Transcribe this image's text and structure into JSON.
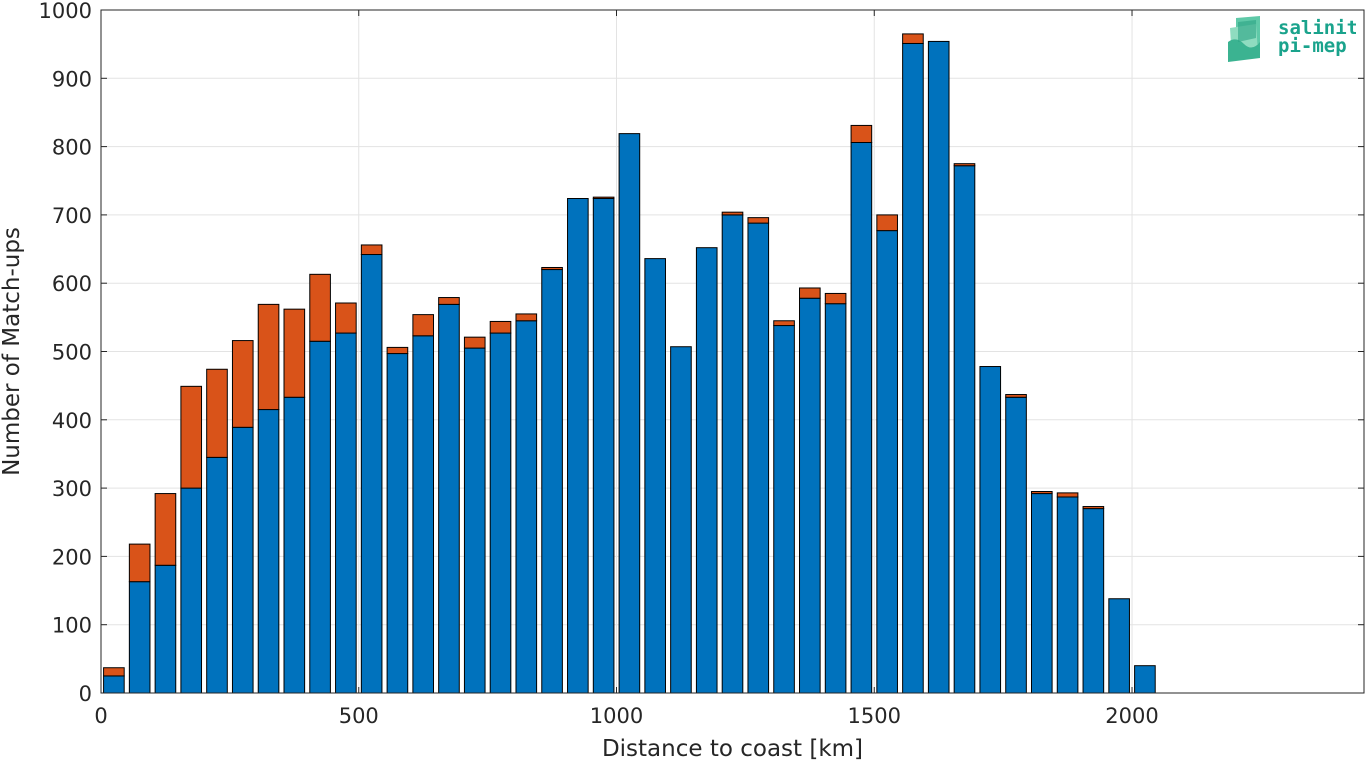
{
  "chart_data": {
    "type": "bar",
    "stacked": true,
    "title": "",
    "xlabel": "Distance to coast [km]",
    "ylabel": "Number of Match-ups",
    "xlim": [
      0,
      2450
    ],
    "ylim": [
      0,
      1000
    ],
    "xticks": [
      0,
      500,
      1000,
      1500,
      2000
    ],
    "yticks": [
      0,
      100,
      200,
      300,
      400,
      500,
      600,
      700,
      800,
      900,
      1000
    ],
    "grid": true,
    "bar_width": 40,
    "x": [
      25,
      75,
      125,
      175,
      225,
      275,
      325,
      375,
      425,
      475,
      525,
      575,
      625,
      675,
      725,
      775,
      825,
      875,
      925,
      975,
      1025,
      1075,
      1125,
      1175,
      1225,
      1275,
      1325,
      1375,
      1425,
      1475,
      1525,
      1575,
      1625,
      1675,
      1725,
      1775,
      1825,
      1875,
      1925,
      1975,
      2025,
      2075,
      2125,
      2175,
      2225,
      2275,
      2325,
      2375,
      2425
    ],
    "series": [
      {
        "color": "#0072BD",
        "values": [
          25,
          163,
          187,
          300,
          345,
          389,
          415,
          433,
          515,
          527,
          642,
          497,
          523,
          569,
          505,
          527,
          545,
          620,
          724,
          724,
          819,
          636,
          507,
          652,
          700,
          688,
          538,
          578,
          570,
          806,
          677,
          951,
          954,
          772,
          478,
          433,
          292,
          287,
          270,
          138,
          40,
          0,
          0,
          0,
          0,
          0,
          0,
          0,
          0
        ]
      },
      {
        "color": "#D95319",
        "values": [
          12,
          55,
          105,
          149,
          129,
          127,
          154,
          129,
          98,
          44,
          14,
          9,
          31,
          10,
          16,
          17,
          10,
          3,
          0,
          2,
          0,
          0,
          0,
          0,
          4,
          8,
          7,
          15,
          15,
          25,
          23,
          14,
          0,
          3,
          0,
          4,
          3,
          6,
          3,
          0,
          0,
          0,
          0,
          0,
          0,
          0,
          0,
          0,
          0
        ]
      }
    ]
  },
  "logo": {
    "line1": "salinity",
    "line2": "pi-mep"
  }
}
